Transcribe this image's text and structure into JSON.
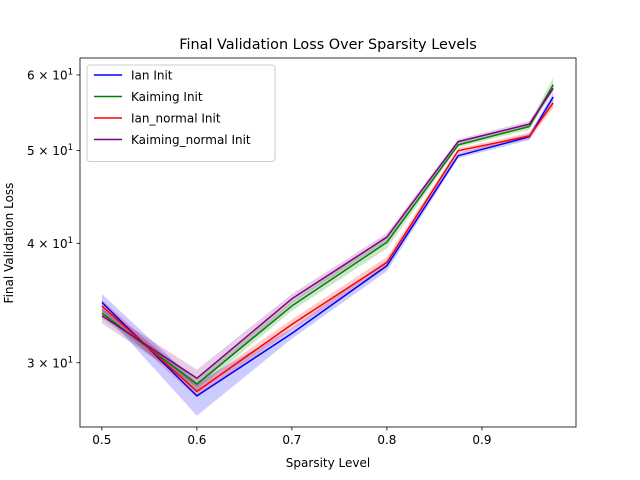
{
  "chart_data": {
    "type": "line",
    "title": "Final Validation Loss Over Sparsity Levels",
    "xlabel": "Sparsity Level",
    "ylabel": "Final Validation Loss",
    "x": [
      0.5,
      0.6,
      0.7,
      0.8,
      0.875,
      0.95,
      0.975
    ],
    "xlim": [
      0.477,
      0.999
    ],
    "ylim": [
      25.7,
      62.5
    ],
    "yscale": "log",
    "x_ticks": [
      0.5,
      0.6,
      0.7,
      0.8,
      0.9
    ],
    "x_tick_labels": [
      "0.5",
      "0.6",
      "0.7",
      "0.8",
      "0.9"
    ],
    "y_ticks": [
      30,
      40,
      50,
      60
    ],
    "y_tick_labels": [
      {
        "base": "3",
        "exp": "1"
      },
      {
        "base": "4",
        "exp": "1"
      },
      {
        "base": "5",
        "exp": "1"
      },
      {
        "base": "6",
        "exp": "1"
      }
    ],
    "grid": false,
    "legend_position": "upper-left",
    "series": [
      {
        "name": "Ian Init",
        "color": "#0000ff",
        "values": [
          34.7,
          27.7,
          32.2,
          37.9,
          49.4,
          51.7,
          56.9
        ],
        "lower": [
          34.0,
          26.4,
          31.8,
          37.4,
          49.1,
          51.3,
          56.3
        ],
        "upper": [
          35.4,
          28.6,
          32.6,
          38.4,
          49.7,
          52.1,
          57.5
        ]
      },
      {
        "name": "Kaiming Init",
        "color": "#008000",
        "values": [
          33.8,
          28.5,
          34.4,
          40.1,
          50.7,
          53.0,
          58.6
        ],
        "lower": [
          33.4,
          28.1,
          34.0,
          39.5,
          50.4,
          52.6,
          57.9
        ],
        "upper": [
          34.2,
          28.9,
          34.8,
          40.7,
          51.0,
          53.4,
          59.6
        ]
      },
      {
        "name": "Ian_normal Init",
        "color": "#ff0000",
        "values": [
          34.4,
          28.0,
          32.9,
          38.2,
          50.0,
          51.8,
          56.1
        ],
        "lower": [
          33.9,
          27.6,
          32.5,
          37.7,
          49.7,
          51.4,
          55.4
        ],
        "upper": [
          34.9,
          28.4,
          33.3,
          38.7,
          50.3,
          52.2,
          56.8
        ]
      },
      {
        "name": "Kaiming_normal Init",
        "color": "#800080",
        "values": [
          33.6,
          28.9,
          35.0,
          40.6,
          51.1,
          53.3,
          58.1
        ],
        "lower": [
          33.0,
          28.3,
          34.6,
          40.2,
          50.8,
          52.9,
          57.6
        ],
        "upper": [
          34.2,
          29.5,
          35.4,
          41.0,
          51.4,
          53.7,
          58.6
        ]
      }
    ]
  }
}
